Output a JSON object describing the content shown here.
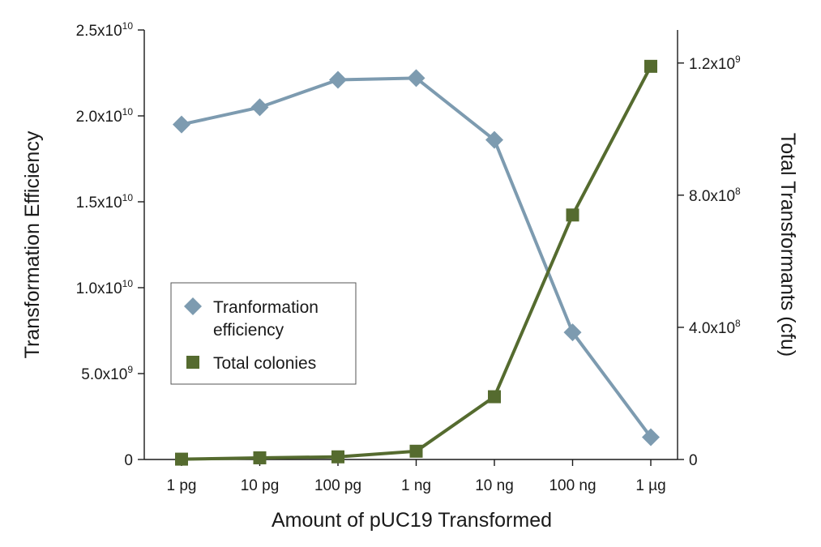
{
  "chart_data": {
    "type": "line",
    "title": "",
    "xlabel": "Amount of pUC19 Transformed",
    "ylabel_left": "Transformation Efficiency",
    "ylabel_right": "Total Transformants (cfu)",
    "categories": [
      "1 pg",
      "10 pg",
      "100 pg",
      "1 ng",
      "10 ng",
      "100 ng",
      "1 µg"
    ],
    "left_axis": {
      "ylim": [
        0,
        25000000000
      ],
      "ticks": [
        {
          "value": 0,
          "base": "0",
          "exp": ""
        },
        {
          "value": 5000000000,
          "base": "5.0x10",
          "exp": "9"
        },
        {
          "value": 10000000000,
          "base": "1.0x10",
          "exp": "10"
        },
        {
          "value": 15000000000,
          "base": "1.5x10",
          "exp": "10"
        },
        {
          "value": 20000000000,
          "base": "2.0x10",
          "exp": "10"
        },
        {
          "value": 25000000000,
          "base": "2.5x10",
          "exp": "10"
        }
      ]
    },
    "right_axis": {
      "ylim": [
        0,
        1300000000
      ],
      "ticks": [
        {
          "value": 0,
          "base": "0",
          "exp": ""
        },
        {
          "value": 400000000,
          "base": "4.0x10",
          "exp": "8"
        },
        {
          "value": 800000000,
          "base": "8.0x10",
          "exp": "8"
        },
        {
          "value": 1200000000,
          "base": "1.2x10",
          "exp": "9"
        }
      ]
    },
    "series": [
      {
        "name": "Tranformation efficiency",
        "name_lines": [
          "Tranformation",
          "efficiency"
        ],
        "axis": "left",
        "marker": "diamond",
        "color": "#7d9bb0",
        "values": [
          19500000000,
          20500000000,
          22100000000,
          22200000000,
          18600000000,
          7400000000,
          1300000000
        ]
      },
      {
        "name": "Total colonies",
        "name_lines": [
          "Total colonies"
        ],
        "axis": "right",
        "marker": "square",
        "color": "#556b2f",
        "values": [
          1000000,
          5000000,
          8000000,
          25000000,
          190000000,
          740000000,
          1190000000
        ]
      }
    ],
    "legend": {
      "position": "center-left"
    },
    "grid": false
  }
}
